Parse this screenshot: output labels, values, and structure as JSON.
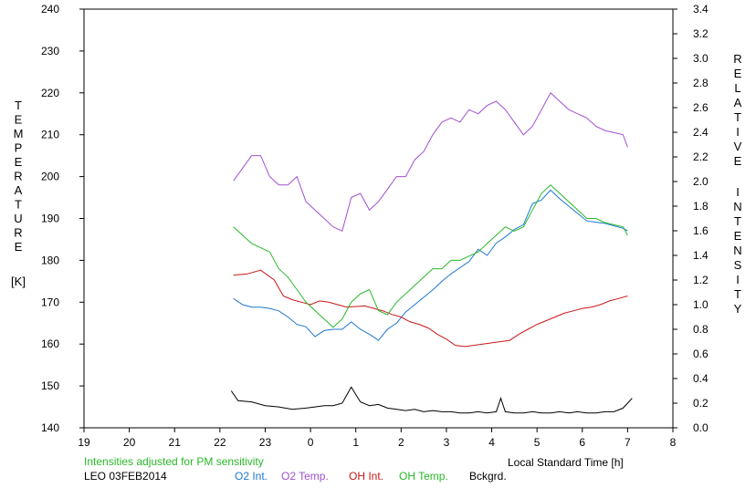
{
  "chart_data": {
    "type": "line",
    "xlabel": "Local Standard Time [h]",
    "x_ticks": [
      "19",
      "20",
      "21",
      "22",
      "23",
      "0",
      "1",
      "2",
      "3",
      "4",
      "5",
      "6",
      "7",
      "8"
    ],
    "xlim": [
      19,
      32
    ],
    "ylabel_left_letters": [
      "T",
      "E",
      "M",
      "P",
      "E",
      "R",
      "A",
      "T",
      "U",
      "R",
      "E"
    ],
    "ylabel_left_unit": "[K]",
    "ylim_left": [
      140,
      240
    ],
    "y_ticks_left": [
      "140",
      "150",
      "160",
      "170",
      "180",
      "190",
      "200",
      "210",
      "220",
      "230",
      "240"
    ],
    "ylabel_right_word1": [
      "R",
      "E",
      "L",
      "A",
      "T",
      "I",
      "V",
      "E"
    ],
    "ylabel_right_word2": [
      "I",
      "N",
      "T",
      "E",
      "N",
      "S",
      "I",
      "T",
      "Y"
    ],
    "ylim_right": [
      0.0,
      3.4
    ],
    "y_ticks_right": [
      "0.0",
      "0.2",
      "0.4",
      "0.6",
      "0.8",
      "1.0",
      "1.2",
      "1.4",
      "1.6",
      "1.8",
      "2.0",
      "2.2",
      "2.4",
      "2.6",
      "2.8",
      "3.0",
      "3.2",
      "3.4"
    ],
    "note": "Intensities adjusted for PM sensitivity",
    "station_date": "LEO 03FEB2014",
    "grid": false,
    "series": [
      {
        "name": "O2 Int.",
        "axis": "right",
        "color": "#1c78d0",
        "x": [
          22.3,
          22.5,
          22.7,
          22.9,
          23.1,
          23.3,
          23.5,
          23.7,
          23.9,
          24.1,
          24.3,
          24.5,
          24.7,
          24.9,
          25.1,
          25.3,
          25.5,
          25.7,
          25.9,
          26.1,
          26.3,
          26.5,
          26.7,
          26.9,
          27.1,
          27.3,
          27.5,
          27.7,
          27.9,
          28.1,
          28.3,
          28.5,
          28.7,
          28.9,
          29.1,
          29.3,
          29.5,
          29.7,
          29.9,
          30.1,
          30.3,
          30.5,
          30.9,
          31.0
        ],
        "y": [
          1.05,
          1.0,
          0.98,
          0.98,
          0.97,
          0.95,
          0.9,
          0.84,
          0.82,
          0.74,
          0.79,
          0.8,
          0.8,
          0.86,
          0.8,
          0.76,
          0.71,
          0.8,
          0.85,
          0.94,
          1.0,
          1.06,
          1.12,
          1.19,
          1.25,
          1.3,
          1.35,
          1.45,
          1.4,
          1.5,
          1.55,
          1.61,
          1.65,
          1.82,
          1.85,
          1.93,
          1.86,
          1.8,
          1.74,
          1.68,
          1.67,
          1.66,
          1.62,
          1.6
        ]
      },
      {
        "name": "O2 Temp.",
        "axis": "left",
        "color": "#a050d0",
        "x": [
          22.3,
          22.5,
          22.7,
          22.9,
          23.1,
          23.3,
          23.5,
          23.7,
          23.9,
          24.1,
          24.3,
          24.5,
          24.7,
          24.9,
          25.1,
          25.3,
          25.5,
          25.7,
          25.9,
          26.1,
          26.3,
          26.5,
          26.7,
          26.9,
          27.1,
          27.3,
          27.5,
          27.7,
          27.9,
          28.1,
          28.3,
          28.5,
          28.7,
          28.9,
          29.1,
          29.3,
          29.5,
          29.7,
          29.9,
          30.1,
          30.3,
          30.5,
          30.9,
          31.0
        ],
        "y": [
          199,
          202,
          205,
          205,
          200,
          198,
          198,
          200,
          194,
          192,
          190,
          188,
          187,
          195,
          196,
          192,
          194,
          197,
          200,
          200,
          204,
          206,
          210,
          213,
          214,
          213,
          216,
          215,
          217,
          218,
          216,
          213,
          210,
          212,
          216,
          220,
          218,
          216,
          215,
          214,
          212,
          211,
          210,
          207
        ]
      },
      {
        "name": "OH Int.",
        "axis": "right",
        "color": "#c81818",
        "x": [
          22.3,
          22.6,
          22.9,
          23.2,
          23.4,
          23.6,
          23.8,
          24.0,
          24.2,
          24.4,
          24.6,
          24.8,
          25.2,
          25.4,
          25.6,
          25.8,
          26.0,
          26.2,
          26.4,
          26.6,
          26.8,
          27.0,
          27.2,
          27.4,
          27.6,
          27.8,
          28.0,
          28.2,
          28.4,
          28.6,
          28.8,
          29.0,
          29.2,
          29.4,
          29.6,
          29.8,
          30.0,
          30.2,
          30.4,
          30.6,
          30.8,
          31.0
        ],
        "y": [
          1.24,
          1.25,
          1.28,
          1.2,
          1.07,
          1.04,
          1.02,
          1.0,
          1.03,
          1.02,
          1.0,
          0.98,
          0.99,
          0.97,
          0.95,
          0.92,
          0.9,
          0.86,
          0.84,
          0.81,
          0.76,
          0.72,
          0.67,
          0.66,
          0.67,
          0.68,
          0.69,
          0.7,
          0.71,
          0.76,
          0.8,
          0.84,
          0.87,
          0.9,
          0.93,
          0.95,
          0.97,
          0.98,
          1.0,
          1.03,
          1.05,
          1.07
        ]
      },
      {
        "name": "OH Temp.",
        "axis": "left",
        "color": "#28b828",
        "x": [
          22.3,
          22.5,
          22.7,
          22.9,
          23.1,
          23.3,
          23.5,
          23.7,
          23.9,
          24.1,
          24.3,
          24.5,
          24.7,
          24.9,
          25.1,
          25.3,
          25.5,
          25.7,
          25.9,
          26.1,
          26.3,
          26.5,
          26.7,
          26.9,
          27.1,
          27.3,
          27.5,
          27.7,
          27.9,
          28.1,
          28.3,
          28.5,
          28.7,
          28.9,
          29.1,
          29.3,
          29.5,
          29.7,
          29.9,
          30.1,
          30.3,
          30.5,
          30.9,
          31.0
        ],
        "y": [
          188,
          186,
          184,
          183,
          182,
          178,
          176,
          173,
          170,
          168,
          166,
          164,
          166,
          170,
          172,
          173,
          168,
          167,
          170,
          172,
          174,
          176,
          178,
          178,
          180,
          180,
          181,
          182,
          184,
          186,
          188,
          187,
          188,
          192,
          196,
          198,
          196,
          194,
          192,
          190,
          190,
          189,
          188,
          186
        ]
      },
      {
        "name": "Bckgrd.",
        "axis": "right",
        "color": "#000000",
        "x": [
          22.25,
          22.4,
          22.7,
          23.0,
          23.3,
          23.6,
          23.9,
          24.1,
          24.3,
          24.5,
          24.7,
          24.9,
          25.1,
          25.3,
          25.5,
          25.7,
          25.9,
          26.1,
          26.3,
          26.5,
          26.7,
          26.9,
          27.1,
          27.3,
          27.5,
          27.7,
          27.9,
          28.1,
          28.2,
          28.3,
          28.5,
          28.7,
          28.9,
          29.1,
          29.3,
          29.5,
          29.7,
          29.9,
          30.1,
          30.3,
          30.5,
          30.7,
          30.9,
          31.1
        ],
        "y": [
          0.3,
          0.22,
          0.21,
          0.18,
          0.17,
          0.15,
          0.16,
          0.17,
          0.18,
          0.18,
          0.2,
          0.33,
          0.21,
          0.18,
          0.19,
          0.16,
          0.15,
          0.14,
          0.15,
          0.13,
          0.14,
          0.13,
          0.13,
          0.12,
          0.12,
          0.13,
          0.12,
          0.13,
          0.24,
          0.13,
          0.12,
          0.12,
          0.13,
          0.12,
          0.12,
          0.13,
          0.12,
          0.13,
          0.12,
          0.12,
          0.13,
          0.13,
          0.16,
          0.24
        ]
      }
    ]
  }
}
